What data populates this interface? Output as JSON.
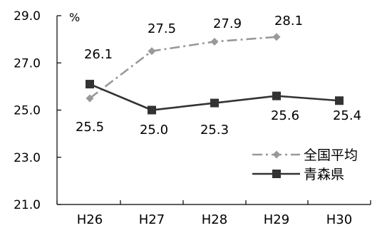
{
  "chart_data": {
    "type": "line",
    "unit_label": "%",
    "categories": [
      "H26",
      "H27",
      "H28",
      "H29",
      "H30"
    ],
    "y_ticks": [
      "29.0",
      "27.0",
      "25.0",
      "23.0",
      "21.0"
    ],
    "ylim": [
      21.0,
      29.0
    ],
    "grid": false,
    "legend_position": "right",
    "series": [
      {
        "name": "全国平均",
        "values": [
          25.5,
          27.5,
          27.9,
          28.1,
          null
        ],
        "labels": [
          "",
          "27.5",
          "27.9",
          "28.1",
          ""
        ],
        "color": "#999999",
        "style": "dash-dot",
        "marker": "diamond"
      },
      {
        "name": "青森県",
        "values": [
          26.1,
          25.0,
          25.3,
          25.6,
          25.4
        ],
        "labels": [
          "26.1",
          "25.0",
          "25.3",
          "25.6",
          "25.4"
        ],
        "color": "#333333",
        "style": "solid",
        "marker": "square"
      }
    ],
    "extra_labels": [
      "25.5"
    ]
  }
}
